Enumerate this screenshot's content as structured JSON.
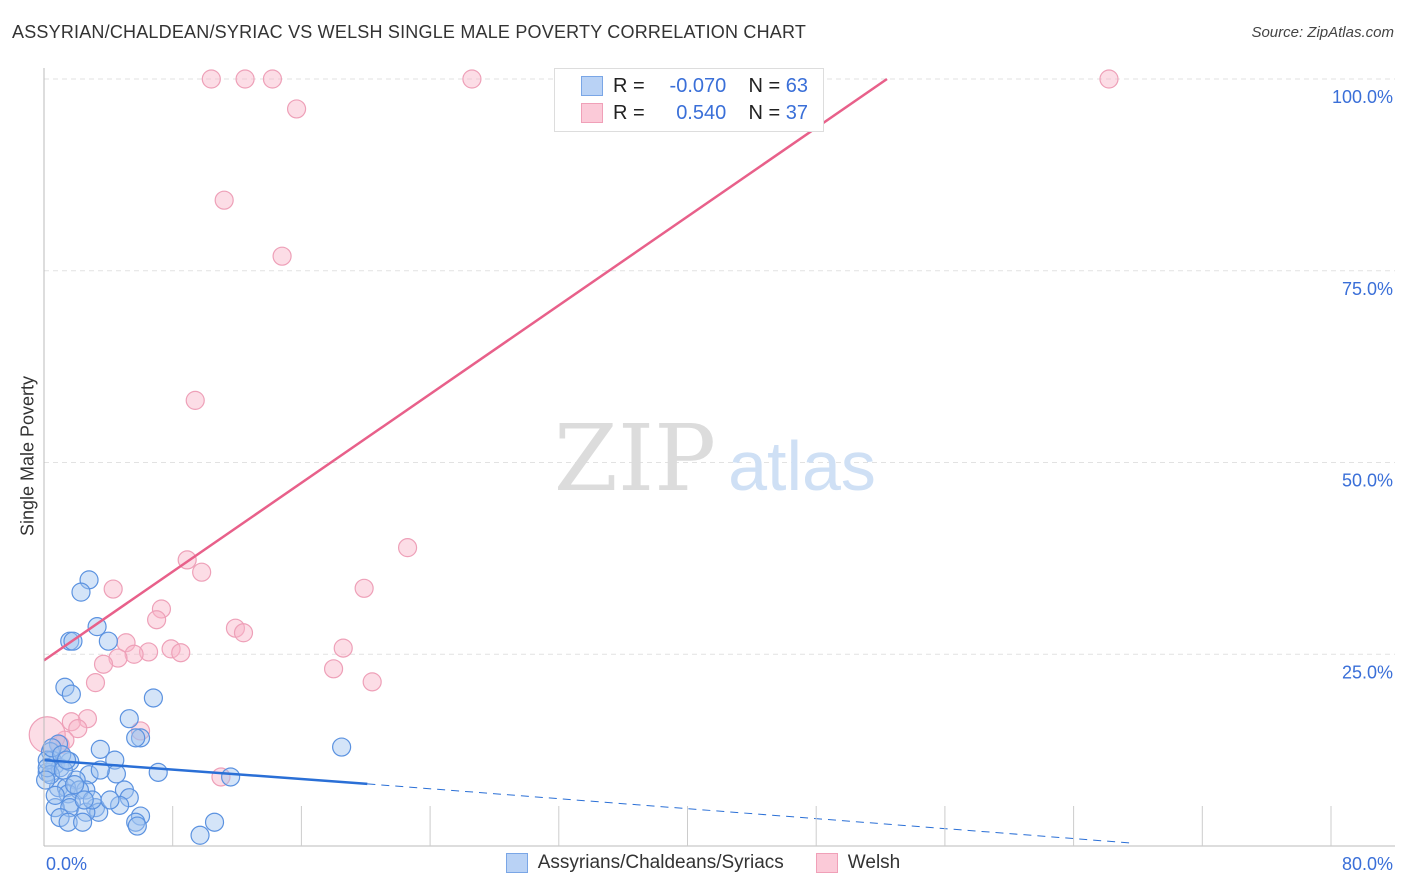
{
  "title": "ASSYRIAN/CHALDEAN/SYRIAC VS WELSH SINGLE MALE POVERTY CORRELATION CHART",
  "source": "Source: ZipAtlas.com",
  "watermark": {
    "zip": "ZIP",
    "atlas": "atlas"
  },
  "legend": [
    {
      "r_label": "R =",
      "r_value": "-0.070",
      "n_label": "N =",
      "n_value": "63"
    },
    {
      "r_label": "R =",
      "r_value": "0.540",
      "n_label": "N =",
      "n_value": "37"
    }
  ],
  "chart_data": {
    "type": "scatter",
    "title": "ASSYRIAN/CHALDEAN/SYRIAC VS WELSH SINGLE MALE POVERTY CORRELATION CHART",
    "xlabel": "",
    "ylabel": "Single Male Poverty",
    "xlim": [
      0,
      80
    ],
    "ylim": [
      0,
      100
    ],
    "x_tick_labels": [
      "0.0%",
      "80.0%"
    ],
    "y_ticks": [
      25,
      50,
      75,
      100
    ],
    "y_tick_labels": [
      "25.0%",
      "50.0%",
      "75.0%",
      "100.0%"
    ],
    "grid": true,
    "legend_position": "top-center and bottom",
    "colors": {
      "blue": "#6fa0e8",
      "blue_line": "#2a6fd6",
      "pink": "#f0a0b8",
      "pink_line": "#e8608a",
      "axis_text": "#3a6fd8"
    },
    "series": [
      {
        "name": "Assyrians/Chaldeans/Syriacs",
        "color": "blue",
        "trend": {
          "x0": 0,
          "y0": 11.2,
          "x1": 20.1,
          "y1": 8.1,
          "dashed_to_x": 67.5,
          "dashed_to_y": 0.4
        },
        "points": [
          [
            2.8,
            34.7
          ],
          [
            2.3,
            33.1
          ],
          [
            3.3,
            28.6
          ],
          [
            1.6,
            26.7
          ],
          [
            1.8,
            26.7
          ],
          [
            4.0,
            26.7
          ],
          [
            1.3,
            20.7
          ],
          [
            1.7,
            19.8
          ],
          [
            6.8,
            19.3
          ],
          [
            5.3,
            16.6
          ],
          [
            6.0,
            14.1
          ],
          [
            5.7,
            14.1
          ],
          [
            18.5,
            12.9
          ],
          [
            3.5,
            12.6
          ],
          [
            4.4,
            11.2
          ],
          [
            0.9,
            13.3
          ],
          [
            0.4,
            12.3
          ],
          [
            0.7,
            10.6
          ],
          [
            0.2,
            9.6
          ],
          [
            0.5,
            11.2
          ],
          [
            1.0,
            10.2
          ],
          [
            1.6,
            11.0
          ],
          [
            7.1,
            9.6
          ],
          [
            4.5,
            9.4
          ],
          [
            11.6,
            9.0
          ],
          [
            2.8,
            9.3
          ],
          [
            2.0,
            8.6
          ],
          [
            0.9,
            7.6
          ],
          [
            2.6,
            7.3
          ],
          [
            1.4,
            7.6
          ],
          [
            1.5,
            6.8
          ],
          [
            2.2,
            7.3
          ],
          [
            5.0,
            7.3
          ],
          [
            5.3,
            6.3
          ],
          [
            1.7,
            5.6
          ],
          [
            0.7,
            5.0
          ],
          [
            1.6,
            5.0
          ],
          [
            3.2,
            5.0
          ],
          [
            3.4,
            4.4
          ],
          [
            4.7,
            5.3
          ],
          [
            6.0,
            3.9
          ],
          [
            2.6,
            4.4
          ],
          [
            1.0,
            3.7
          ],
          [
            1.5,
            3.1
          ],
          [
            2.4,
            3.1
          ],
          [
            5.7,
            3.1
          ],
          [
            5.8,
            2.6
          ],
          [
            9.7,
            1.4
          ],
          [
            10.6,
            3.1
          ],
          [
            0.2,
            11.2
          ],
          [
            0.4,
            9.3
          ],
          [
            0.2,
            10.2
          ],
          [
            0.5,
            12.8
          ],
          [
            1.1,
            11.9
          ],
          [
            0.1,
            8.6
          ],
          [
            0.7,
            6.6
          ],
          [
            3.5,
            9.9
          ],
          [
            3.0,
            6.0
          ],
          [
            4.1,
            6.0
          ],
          [
            1.2,
            9.9
          ],
          [
            1.9,
            8.0
          ],
          [
            2.5,
            6.0
          ],
          [
            1.4,
            11.2
          ]
        ]
      },
      {
        "name": "Welsh",
        "color": "pink",
        "trend": {
          "x0": 0,
          "y0": 24.2,
          "x1": 52.4,
          "y1": 100
        },
        "points": [
          [
            10.4,
            100
          ],
          [
            12.5,
            100
          ],
          [
            14.2,
            100
          ],
          [
            26.6,
            100
          ],
          [
            66.2,
            100
          ],
          [
            15.7,
            96.1
          ],
          [
            11.2,
            84.2
          ],
          [
            14.8,
            76.9
          ],
          [
            9.4,
            58.1
          ],
          [
            22.6,
            38.9
          ],
          [
            8.9,
            37.3
          ],
          [
            9.8,
            35.7
          ],
          [
            4.3,
            33.5
          ],
          [
            19.9,
            33.6
          ],
          [
            7.3,
            30.9
          ],
          [
            7.0,
            29.5
          ],
          [
            11.9,
            28.4
          ],
          [
            12.4,
            27.8
          ],
          [
            5.1,
            26.5
          ],
          [
            18.6,
            25.8
          ],
          [
            7.9,
            25.7
          ],
          [
            6.5,
            25.3
          ],
          [
            8.5,
            25.2
          ],
          [
            5.6,
            25.0
          ],
          [
            4.6,
            24.5
          ],
          [
            3.7,
            23.7
          ],
          [
            18.0,
            23.1
          ],
          [
            20.4,
            21.4
          ],
          [
            3.2,
            21.3
          ],
          [
            2.7,
            16.6
          ],
          [
            1.7,
            16.2
          ],
          [
            6.0,
            15.0
          ],
          [
            2.1,
            15.3
          ],
          [
            1.3,
            13.8
          ],
          [
            1.0,
            13.2
          ],
          [
            11.0,
            9.0
          ],
          [
            0.2,
            14.5
          ]
        ]
      }
    ]
  }
}
